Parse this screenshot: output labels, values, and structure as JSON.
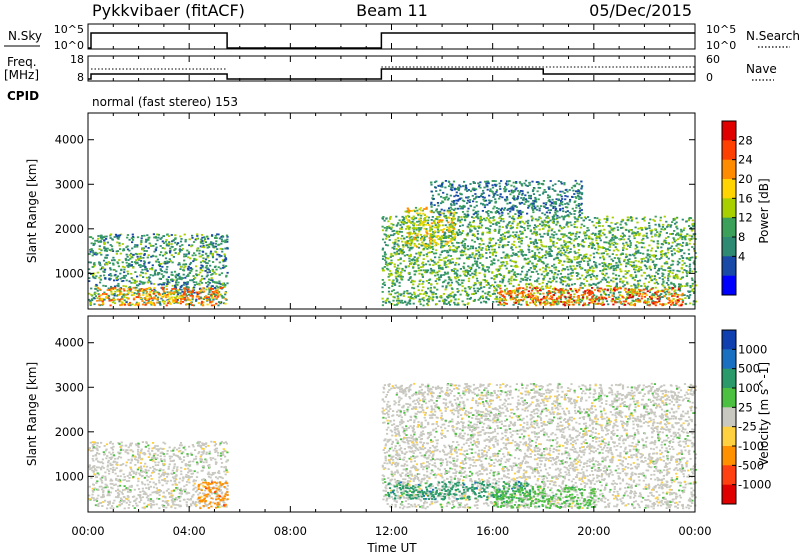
{
  "header": {
    "title_left": "Pykkvibaer (fitACF)",
    "title_center": "Beam 11",
    "title_right": "05/Dec/2015"
  },
  "panel_nsky": {
    "left_label": "N.Sky",
    "y_ticks": [
      "10^5",
      "10^0"
    ],
    "right_ticks": [
      "10^5",
      "10^0"
    ],
    "right_label": "N.Search"
  },
  "panel_freq": {
    "left_label_1": "Freq.",
    "left_label_2": "[MHz]",
    "y_ticks": [
      "18",
      "8"
    ],
    "right_ticks": [
      "60",
      "0"
    ],
    "right_label": "Nave"
  },
  "cpid": {
    "label": "CPID",
    "text": "normal (fast stereo) 153"
  },
  "time_axis": {
    "label": "Time UT",
    "ticks": [
      "00:00",
      "04:00",
      "08:00",
      "12:00",
      "16:00",
      "20:00",
      "00:00"
    ]
  },
  "power_colorbar": {
    "label": "Power [dB]",
    "ticks": [
      "28",
      "24",
      "20",
      "16",
      "12",
      "8",
      "4"
    ],
    "colors": [
      "#e00000",
      "#ff4000",
      "#ff8c00",
      "#ffd400",
      "#a8d000",
      "#3aa05a",
      "#2f8a74",
      "#1a4aa8",
      "#0000ff"
    ]
  },
  "velocity_colorbar": {
    "label": "Velocity [m s^-1]",
    "ticks": [
      "1000",
      "500",
      "100",
      "25",
      "-25",
      "-100",
      "-500",
      "-1000"
    ],
    "colors": [
      "#1040b0",
      "#1a70c0",
      "#2a9a6a",
      "#4cc040",
      "#c8c8c0",
      "#ffd040",
      "#ff9000",
      "#ff4010",
      "#e00000"
    ]
  },
  "chart_data": [
    {
      "type": "heatmap",
      "title": "",
      "xlabel": "Time UT",
      "ylabel": "Slant Range [km]",
      "xlim": [
        0,
        24
      ],
      "ylim": [
        200,
        4600
      ],
      "y_ticks": [
        1000,
        2000,
        3000,
        4000
      ],
      "color_label": "Power [dB]",
      "color_range": [
        0,
        32
      ],
      "data_gap_hours": [
        5.5,
        11.6
      ],
      "blobs": [
        {
          "t0": 0.0,
          "t1": 5.5,
          "r0": 300,
          "r1": 1900,
          "level": 10
        },
        {
          "t0": 0.3,
          "t1": 5.4,
          "r0": 300,
          "r1": 700,
          "level": 24
        },
        {
          "t0": 11.6,
          "t1": 24.0,
          "r0": 300,
          "r1": 2300,
          "level": 12
        },
        {
          "t0": 12.5,
          "t1": 14.5,
          "r0": 1600,
          "r1": 2500,
          "level": 18
        },
        {
          "t0": 16.2,
          "t1": 23.5,
          "r0": 300,
          "r1": 700,
          "level": 26
        },
        {
          "t0": 13.5,
          "t1": 19.5,
          "r0": 2300,
          "r1": 3100,
          "level": 8
        }
      ]
    },
    {
      "type": "heatmap",
      "title": "",
      "xlabel": "Time UT",
      "ylabel": "Slant Range [km]",
      "xlim": [
        0,
        24
      ],
      "ylim": [
        200,
        4600
      ],
      "y_ticks": [
        1000,
        2000,
        3000,
        4000
      ],
      "color_label": "Velocity [m s^-1]",
      "color_range": [
        -1000,
        1000
      ],
      "data_gap_hours": [
        5.5,
        11.6
      ],
      "blobs": [
        {
          "t0": 0.0,
          "t1": 5.5,
          "r0": 300,
          "r1": 1800,
          "level": 0
        },
        {
          "t0": 4.3,
          "t1": 5.5,
          "r0": 300,
          "r1": 900,
          "level": -150
        },
        {
          "t0": 11.6,
          "t1": 24.0,
          "r0": 300,
          "r1": 3100,
          "level": 0
        },
        {
          "t0": 11.8,
          "t1": 17.5,
          "r0": 500,
          "r1": 900,
          "level": 120
        },
        {
          "t0": 16.0,
          "t1": 20.0,
          "r0": 300,
          "r1": 800,
          "level": 60
        }
      ]
    }
  ]
}
